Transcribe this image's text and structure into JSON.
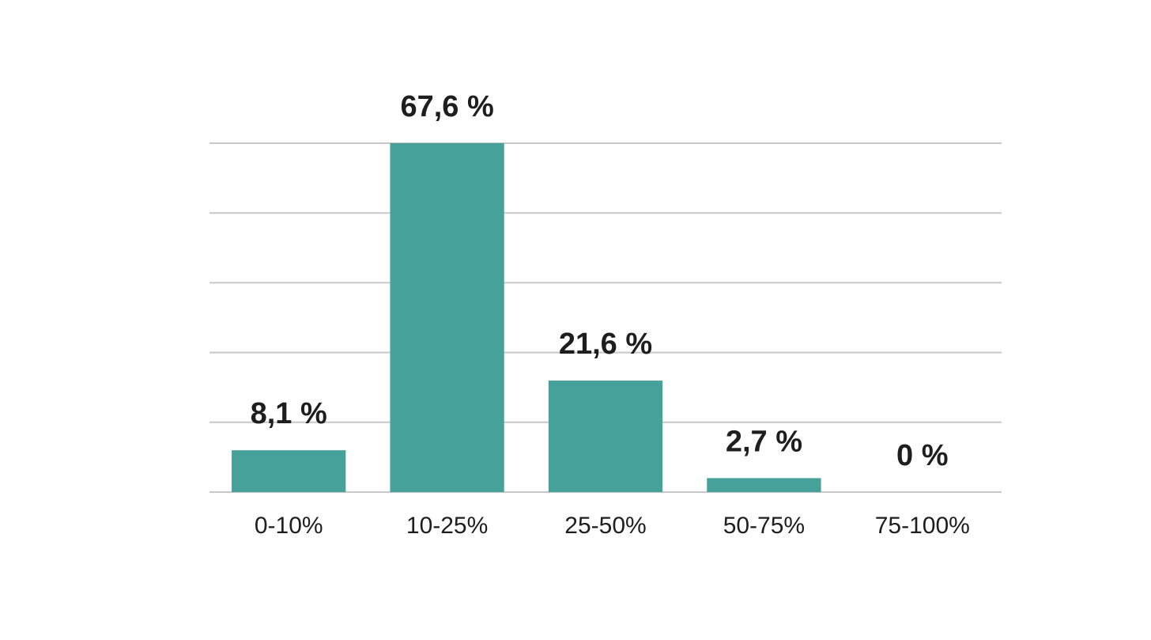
{
  "chart_data": {
    "type": "bar",
    "categories": [
      "0-10%",
      "10-25%",
      "25-50%",
      "50-75%",
      "75-100%"
    ],
    "values": [
      8.1,
      67.6,
      21.6,
      2.7,
      0
    ],
    "value_labels": [
      "8,1 %",
      "67,6 %",
      "21,6 %",
      "2,7 %",
      "0 %"
    ],
    "color": "#45a19a",
    "ylim": [
      0,
      67.6
    ],
    "yticks": [
      0,
      13.52,
      27.04,
      40.56,
      54.08,
      67.6
    ],
    "grid": true
  }
}
